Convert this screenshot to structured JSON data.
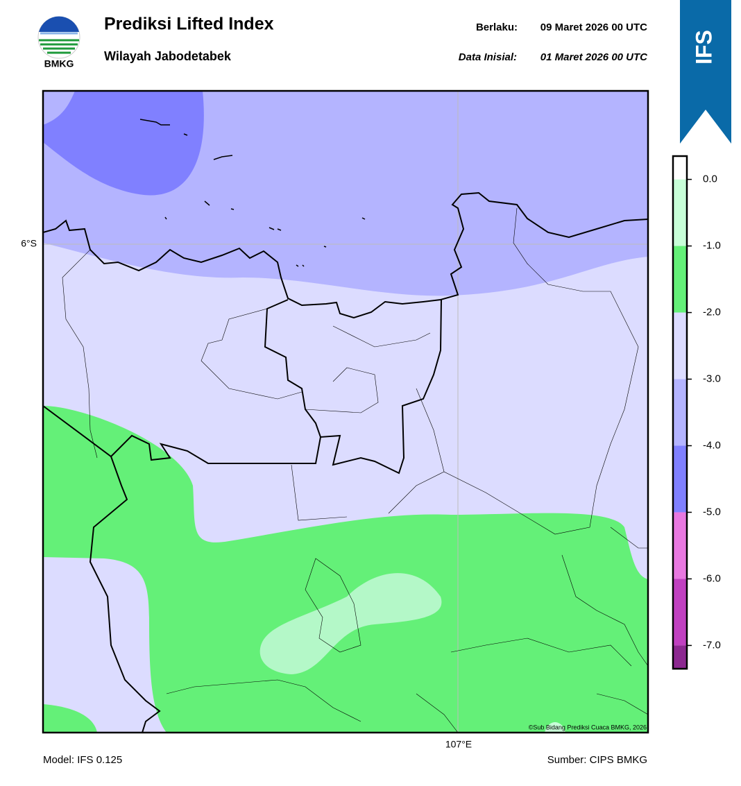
{
  "header": {
    "title": "Prediksi Lifted Index",
    "subtitle": "Wilayah Jabodetabek",
    "logo_text": "BMKG",
    "valid_label": "Berlaku:",
    "valid_time": "09 Maret 2026 00 UTC",
    "init_label": "Data Inisial:",
    "init_time": "01 Maret 2026 00 UTC",
    "badge": "IFS"
  },
  "map": {
    "lat_label": "6°S",
    "lon_label": "107°E",
    "credit": "©Sub Bidang Prediksi Cuaca BMKG, 2026"
  },
  "colorbar": {
    "lim": [
      -7.35,
      0.35
    ],
    "ticks": [
      {
        "value": 0,
        "label": "0.0"
      },
      {
        "value": -1,
        "label": "-1.0"
      },
      {
        "value": -2,
        "label": "-2.0"
      },
      {
        "value": -3,
        "label": "-3.0"
      },
      {
        "value": -4,
        "label": "-4.0"
      },
      {
        "value": -5,
        "label": "-5.0"
      },
      {
        "value": -6,
        "label": "-6.0"
      },
      {
        "value": -7,
        "label": "-7.0"
      }
    ],
    "colors": [
      "#ffffff",
      "#c8ffd8",
      "#64f078",
      "#dcdcff",
      "#b4b4ff",
      "#8080ff",
      "#e878e0",
      "#c040c0",
      "#8c2890"
    ]
  },
  "footer": {
    "model": "Model: IFS 0.125",
    "source": "Sumber: CIPS BMKG"
  }
}
